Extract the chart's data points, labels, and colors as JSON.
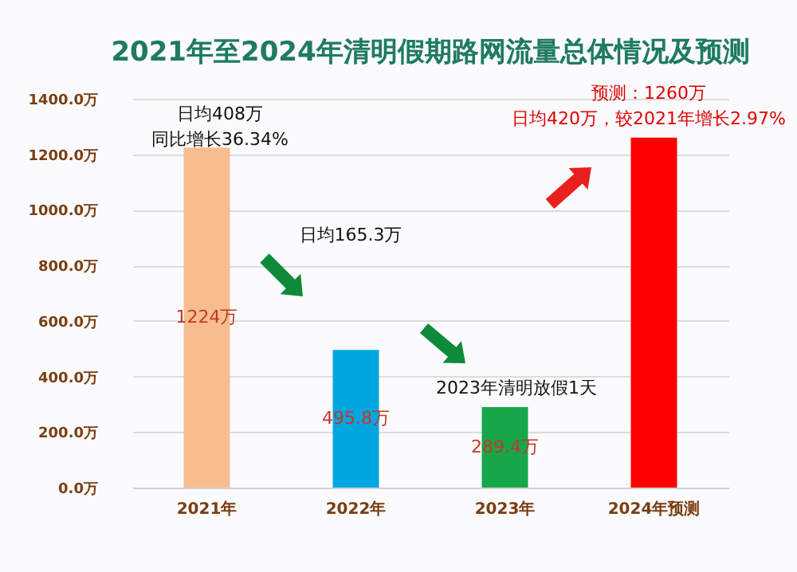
{
  "chart_data": {
    "type": "bar",
    "title": "2021年至2024年清明假期路网流量总体情况及预测",
    "categories": [
      "2021年",
      "2022年",
      "2023年",
      "2024年预测"
    ],
    "values": [
      1224,
      495.8,
      289.4,
      1260
    ],
    "colors": [
      "#f7bd8f",
      "#00a6e0",
      "#17a74a",
      "#ff0000"
    ],
    "value_labels": [
      "1224万",
      "495.8万",
      "289.4万",
      null
    ],
    "ylim": [
      0,
      1400
    ],
    "yticks": [
      {
        "value": 0,
        "label": "0.0万"
      },
      {
        "value": 200,
        "label": "200.0万"
      },
      {
        "value": 400,
        "label": "400.0万"
      },
      {
        "value": 600,
        "label": "600.0万"
      },
      {
        "value": 800,
        "label": "800.0万"
      },
      {
        "value": 1000,
        "label": "1000.0万"
      },
      {
        "value": 1200,
        "label": "1200.0万"
      },
      {
        "value": 1400,
        "label": "1400.0万"
      }
    ],
    "grid": "y",
    "annotations": [
      "日均408万",
      "同比增长36.34%",
      "日均165.3万",
      "2023年清明放假1天",
      "预测：1260万",
      "日均420万，较2021年增长2.97%"
    ]
  }
}
